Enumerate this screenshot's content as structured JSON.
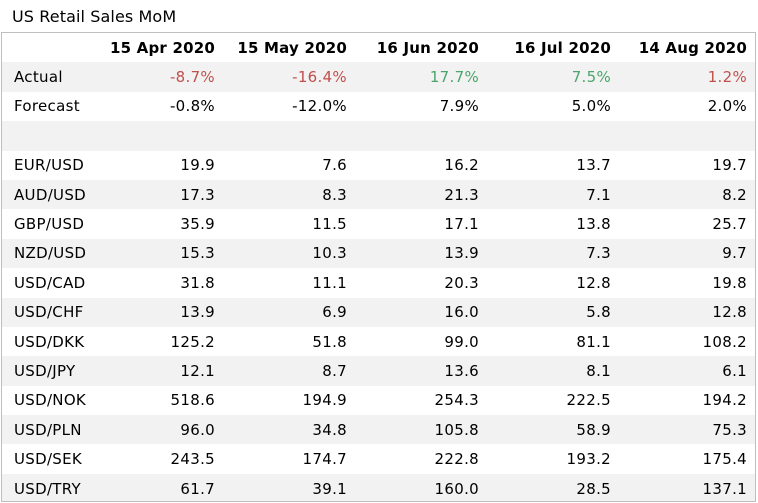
{
  "title": "US Retail Sales MoM",
  "columns": [
    "",
    "15 Apr 2020",
    "15 May 2020",
    "16 Jun 2020",
    "16 Jul 2020",
    "14 Aug 2020"
  ],
  "actual": {
    "label": "Actual",
    "values": [
      "-8.7%",
      "-16.4%",
      "17.7%",
      "7.5%",
      "1.2%"
    ],
    "colors": [
      "#c0504d",
      "#c0504d",
      "#4aa56b",
      "#4aa56b",
      "#c0504d"
    ]
  },
  "forecast": {
    "label": "Forecast",
    "values": [
      "-0.8%",
      "-12.0%",
      "7.9%",
      "5.0%",
      "2.0%"
    ]
  },
  "pairs": [
    {
      "label": "EUR/USD",
      "values": [
        "19.9",
        "7.6",
        "16.2",
        "13.7",
        "19.7"
      ]
    },
    {
      "label": "AUD/USD",
      "values": [
        "17.3",
        "8.3",
        "21.3",
        "7.1",
        "8.2"
      ]
    },
    {
      "label": "GBP/USD",
      "values": [
        "35.9",
        "11.5",
        "17.1",
        "13.8",
        "25.7"
      ]
    },
    {
      "label": "NZD/USD",
      "values": [
        "15.3",
        "10.3",
        "13.9",
        "7.3",
        "9.7"
      ]
    },
    {
      "label": "USD/CAD",
      "values": [
        "31.8",
        "11.1",
        "20.3",
        "12.8",
        "19.8"
      ]
    },
    {
      "label": "USD/CHF",
      "values": [
        "13.9",
        "6.9",
        "16.0",
        "5.8",
        "12.8"
      ]
    },
    {
      "label": "USD/DKK",
      "values": [
        "125.2",
        "51.8",
        "99.0",
        "81.1",
        "108.2"
      ]
    },
    {
      "label": "USD/JPY",
      "values": [
        "12.1",
        "8.7",
        "13.6",
        "8.1",
        "6.1"
      ]
    },
    {
      "label": "USD/NOK",
      "values": [
        "518.6",
        "194.9",
        "254.3",
        "222.5",
        "194.2"
      ]
    },
    {
      "label": "USD/PLN",
      "values": [
        "96.0",
        "34.8",
        "105.8",
        "58.9",
        "75.3"
      ]
    },
    {
      "label": "USD/SEK",
      "values": [
        "243.5",
        "174.7",
        "222.8",
        "193.2",
        "175.4"
      ]
    },
    {
      "label": "USD/TRY",
      "values": [
        "61.7",
        "39.1",
        "160.0",
        "28.5",
        "137.1"
      ]
    }
  ]
}
